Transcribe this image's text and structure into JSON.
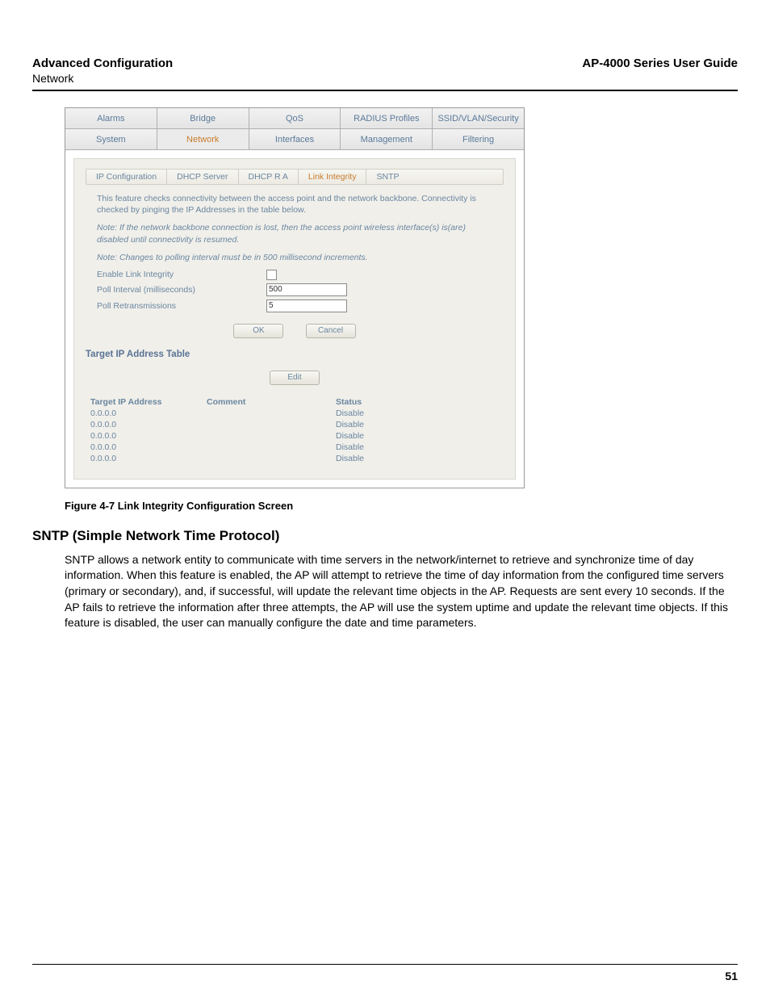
{
  "header": {
    "left_title": "Advanced Configuration",
    "left_sub": "Network",
    "right_title": "AP-4000 Series User Guide"
  },
  "screenshot": {
    "tabs_row1": [
      "Alarms",
      "Bridge",
      "QoS",
      "RADIUS Profiles",
      "SSID/VLAN/Security"
    ],
    "tabs_row2": [
      "System",
      "Network",
      "Interfaces",
      "Management",
      "Filtering"
    ],
    "tabs_row2_active_index": 1,
    "subtabs": [
      "IP Configuration",
      "DHCP Server",
      "DHCP R A",
      "Link Integrity",
      "SNTP"
    ],
    "subtabs_active_index": 3,
    "desc1": "This feature checks connectivity between the access point and the network backbone. Connectivity is checked by pinging the IP Addresses in the table below.",
    "desc2": "Note: If the network backbone connection is lost, then the access point wireless interface(s) is(are) disabled until connectivity is resumed.",
    "desc3": "Note: Changes to polling interval must be in 500 millisecond increments.",
    "form": {
      "enable_label": "Enable Link Integrity",
      "poll_interval_label": "Poll Interval (milliseconds)",
      "poll_interval_value": "500",
      "poll_retrans_label": "Poll Retransmissions",
      "poll_retrans_value": "5"
    },
    "buttons": {
      "ok": "OK",
      "cancel": "Cancel",
      "edit": "Edit"
    },
    "table": {
      "heading": "Target IP Address Table",
      "columns": [
        "Target IP Address",
        "Comment",
        "Status"
      ],
      "rows": [
        {
          "ip": "0.0.0.0",
          "comment": "",
          "status": "Disable"
        },
        {
          "ip": "0.0.0.0",
          "comment": "",
          "status": "Disable"
        },
        {
          "ip": "0.0.0.0",
          "comment": "",
          "status": "Disable"
        },
        {
          "ip": "0.0.0.0",
          "comment": "",
          "status": "Disable"
        },
        {
          "ip": "0.0.0.0",
          "comment": "",
          "status": "Disable"
        }
      ]
    }
  },
  "caption": "Figure 4-7 Link Integrity Configuration Screen",
  "section_heading": "SNTP (Simple Network Time Protocol)",
  "body_paragraph": "SNTP allows a network entity to communicate with time servers in the network/internet to retrieve and synchronize time of day information. When this feature is enabled, the AP will attempt to retrieve the time of day information from the configured time servers (primary or secondary), and, if successful, will update the relevant time objects in the AP. Requests are sent every 10 seconds. If the AP fails to retrieve the information after three attempts, the AP will use the system uptime and update the relevant time objects. If this feature is disabled, the user can manually configure the date and time parameters.",
  "page_number": "51",
  "colors": {
    "tab_text": "#5a7a9a",
    "active_text": "#c77b2a",
    "panel_bg": "#f0efea"
  }
}
